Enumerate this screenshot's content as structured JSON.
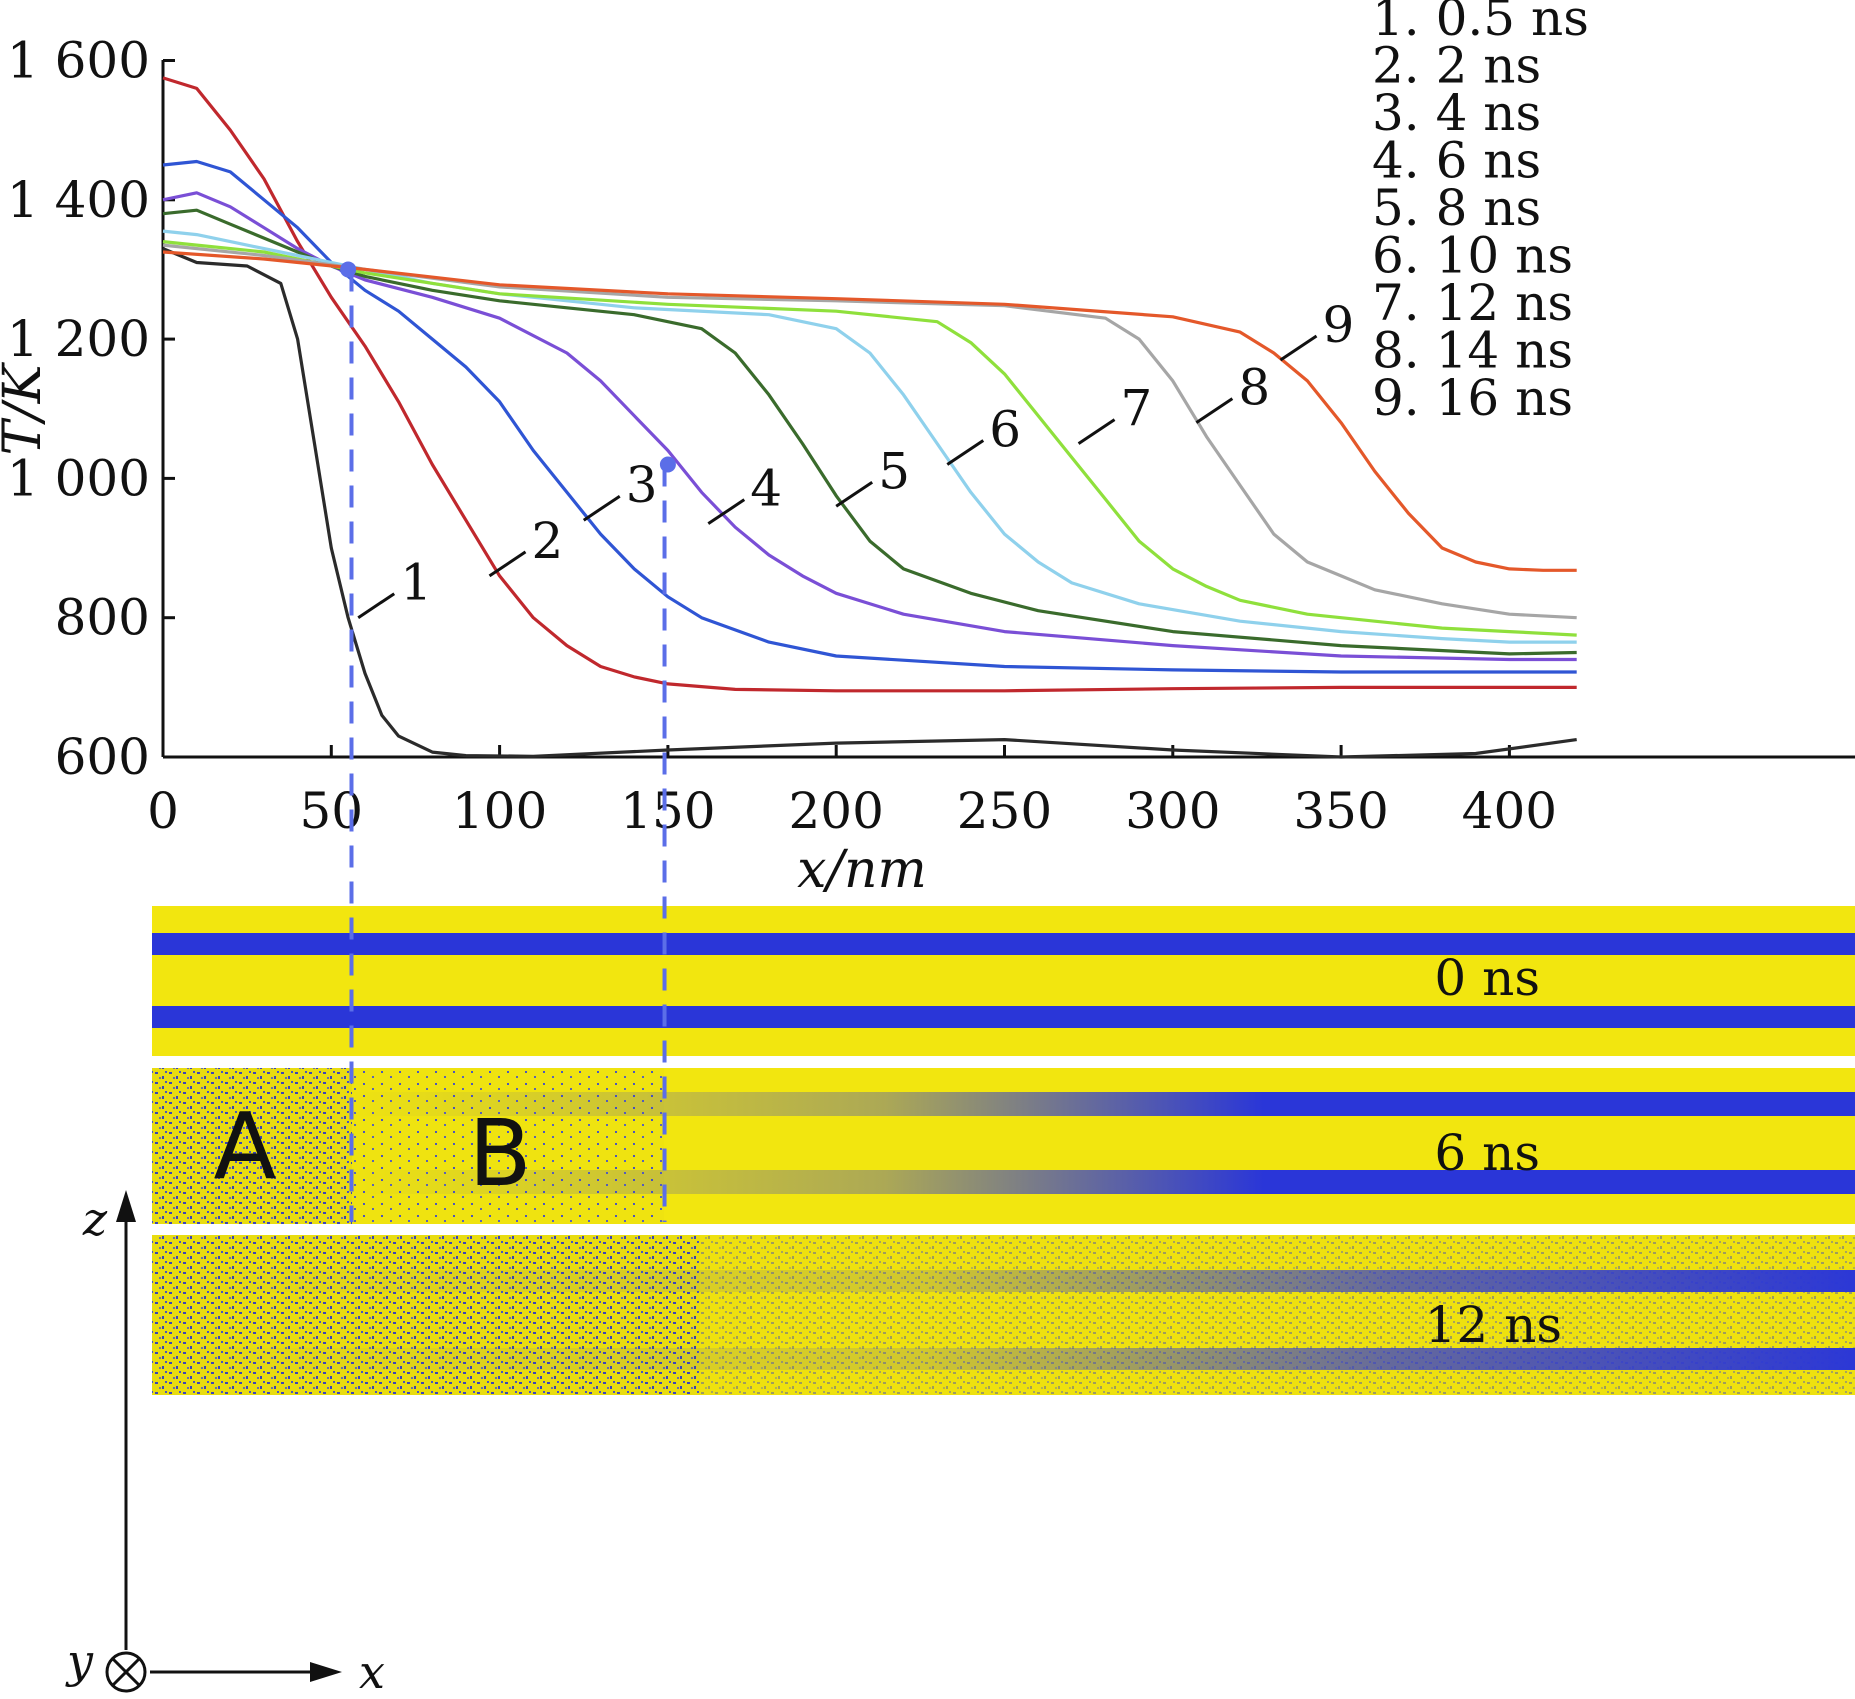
{
  "chart_data": {
    "type": "line",
    "xlabel": "x/nm",
    "ylabel": "T/K",
    "xlim": [
      0,
      420
    ],
    "ylim": [
      600,
      1600
    ],
    "x_ticks": [
      "0",
      "50",
      "100",
      "150",
      "200",
      "250",
      "300",
      "350",
      "400"
    ],
    "y_ticks": [
      "600",
      "800",
      "1 000",
      "1 200",
      "1 400",
      "1 600"
    ],
    "grid": false,
    "legend_placement": "top-right",
    "legend": [
      "1. 0.5 ns",
      "2. 2 ns",
      "3. 4 ns",
      "4. 6 ns",
      "5. 8 ns",
      "6. 10 ns",
      "7. 12 ns",
      "8. 14 ns",
      "9. 16 ns"
    ],
    "series": [
      {
        "label": "1",
        "color": "#2b2b2b",
        "x": [
          0,
          10,
          25,
          35,
          40,
          45,
          50,
          55,
          60,
          65,
          70,
          80,
          90,
          110,
          150,
          200,
          250,
          300,
          350,
          390,
          420
        ],
        "y": [
          1330,
          1310,
          1305,
          1280,
          1200,
          1050,
          900,
          800,
          720,
          660,
          630,
          607,
          602,
          601,
          610,
          620,
          625,
          610,
          600,
          605,
          625
        ]
      },
      {
        "label": "2",
        "color": "#c0282d",
        "x": [
          0,
          10,
          20,
          30,
          40,
          50,
          60,
          70,
          80,
          90,
          100,
          110,
          120,
          130,
          140,
          150,
          170,
          200,
          250,
          300,
          350,
          400,
          420
        ],
        "y": [
          1575,
          1560,
          1500,
          1430,
          1340,
          1260,
          1190,
          1110,
          1020,
          940,
          860,
          800,
          760,
          730,
          715,
          705,
          697,
          695,
          695,
          698,
          700,
          700,
          700
        ]
      },
      {
        "label": "3",
        "color": "#2f55d4",
        "x": [
          0,
          10,
          20,
          30,
          40,
          50,
          60,
          70,
          80,
          90,
          100,
          110,
          120,
          130,
          140,
          150,
          160,
          180,
          200,
          250,
          300,
          350,
          400,
          420
        ],
        "y": [
          1450,
          1455,
          1440,
          1400,
          1360,
          1310,
          1270,
          1240,
          1200,
          1160,
          1110,
          1040,
          980,
          920,
          870,
          830,
          800,
          765,
          745,
          730,
          725,
          722,
          722,
          722
        ]
      },
      {
        "label": "4",
        "color": "#7a4fd6",
        "x": [
          0,
          10,
          20,
          30,
          40,
          50,
          60,
          80,
          100,
          120,
          130,
          140,
          150,
          160,
          170,
          180,
          190,
          200,
          220,
          250,
          300,
          350,
          400,
          420
        ],
        "y": [
          1400,
          1410,
          1390,
          1360,
          1330,
          1305,
          1285,
          1260,
          1230,
          1180,
          1140,
          1090,
          1040,
          980,
          930,
          890,
          860,
          835,
          805,
          780,
          760,
          745,
          740,
          740
        ]
      },
      {
        "label": "5",
        "color": "#3a6b2c",
        "x": [
          0,
          10,
          20,
          30,
          40,
          50,
          60,
          80,
          100,
          120,
          140,
          160,
          170,
          180,
          190,
          200,
          210,
          220,
          240,
          260,
          300,
          350,
          400,
          420
        ],
        "y": [
          1380,
          1385,
          1365,
          1345,
          1325,
          1305,
          1290,
          1270,
          1255,
          1245,
          1235,
          1215,
          1180,
          1120,
          1050,
          975,
          910,
          870,
          835,
          810,
          780,
          760,
          748,
          750
        ]
      },
      {
        "label": "6",
        "color": "#8fd1ec",
        "x": [
          0,
          10,
          20,
          40,
          60,
          80,
          100,
          140,
          180,
          200,
          210,
          220,
          230,
          240,
          250,
          260,
          270,
          290,
          320,
          350,
          380,
          400,
          420
        ],
        "y": [
          1355,
          1350,
          1340,
          1320,
          1300,
          1280,
          1265,
          1245,
          1235,
          1215,
          1180,
          1120,
          1050,
          980,
          920,
          880,
          850,
          820,
          795,
          780,
          770,
          765,
          765
        ]
      },
      {
        "label": "7",
        "color": "#8fe03c",
        "x": [
          0,
          10,
          30,
          60,
          100,
          150,
          200,
          230,
          240,
          250,
          260,
          270,
          280,
          290,
          300,
          310,
          320,
          340,
          360,
          380,
          400,
          420
        ],
        "y": [
          1340,
          1335,
          1325,
          1295,
          1265,
          1250,
          1240,
          1225,
          1195,
          1150,
          1090,
          1030,
          970,
          910,
          870,
          845,
          825,
          805,
          795,
          785,
          780,
          775
        ]
      },
      {
        "label": "8",
        "color": "#a6a6a6",
        "x": [
          0,
          30,
          60,
          100,
          150,
          200,
          250,
          280,
          290,
          300,
          310,
          320,
          330,
          340,
          350,
          360,
          380,
          400,
          420
        ],
        "y": [
          1335,
          1320,
          1300,
          1275,
          1260,
          1255,
          1248,
          1230,
          1200,
          1140,
          1060,
          990,
          920,
          880,
          860,
          840,
          820,
          805,
          800
        ]
      },
      {
        "label": "9",
        "color": "#e4582a",
        "x": [
          0,
          30,
          60,
          100,
          150,
          200,
          250,
          300,
          320,
          330,
          340,
          350,
          360,
          370,
          380,
          390,
          400,
          410,
          420
        ],
        "y": [
          1325,
          1315,
          1300,
          1278,
          1265,
          1258,
          1250,
          1232,
          1210,
          1180,
          1140,
          1080,
          1010,
          950,
          900,
          880,
          870,
          868,
          868
        ]
      }
    ],
    "markers": [
      {
        "x": 55,
        "y": 1300,
        "color": "#5b6ee8"
      },
      {
        "x": 150,
        "y": 1020,
        "color": "#5b6ee8"
      }
    ],
    "guide_lines_x": [
      56,
      149
    ]
  },
  "curve_labels": [
    "1",
    "2",
    "3",
    "4",
    "5",
    "6",
    "7",
    "8",
    "9"
  ],
  "snapshots": [
    {
      "label": "0 ns"
    },
    {
      "label": "6 ns",
      "regions": [
        "A",
        "B"
      ]
    },
    {
      "label": "12 ns"
    }
  ],
  "colors": {
    "layer_bg": "#f2e60f",
    "layer_band": "#2a36d8",
    "guide": "#5b6ee8"
  },
  "coord_axes": {
    "z": "z",
    "x": "x",
    "y": "y"
  }
}
